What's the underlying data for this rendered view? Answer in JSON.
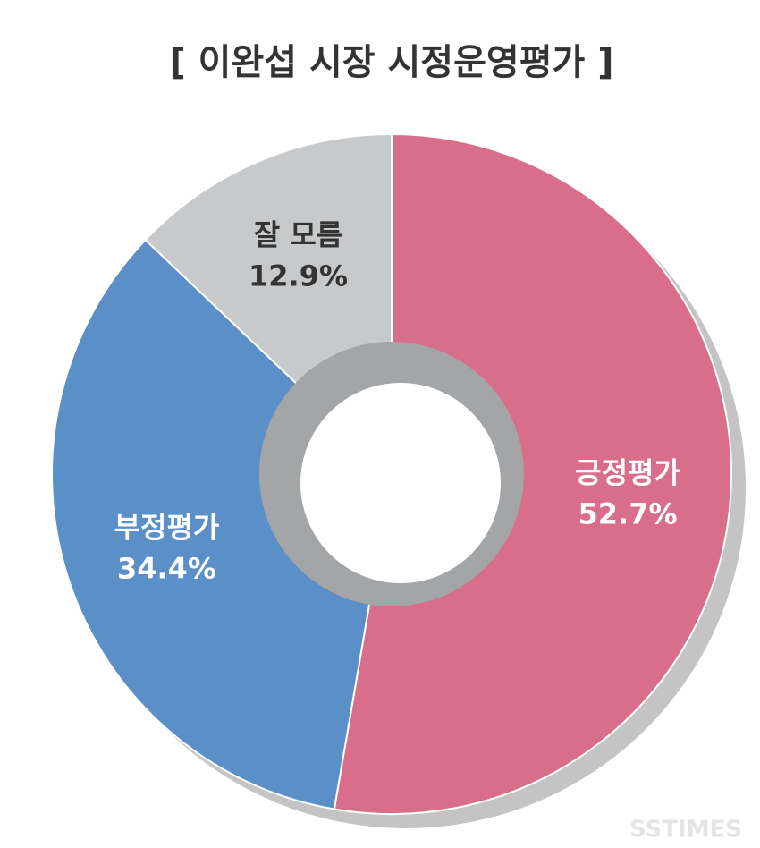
{
  "chart_data": {
    "type": "donut",
    "title": "[ 이완섭 시장 시정운영평가 ]",
    "categories": [
      "긍정평가",
      "부정평가",
      "잘 모름"
    ],
    "values": [
      52.7,
      34.4,
      12.9
    ],
    "value_labels": [
      "52.7%",
      "34.4%",
      "12.9%"
    ],
    "colors": [
      "#d96e8a",
      "#5b8fc7",
      "#c8c9cb"
    ],
    "watermark": "SSTIMES"
  }
}
